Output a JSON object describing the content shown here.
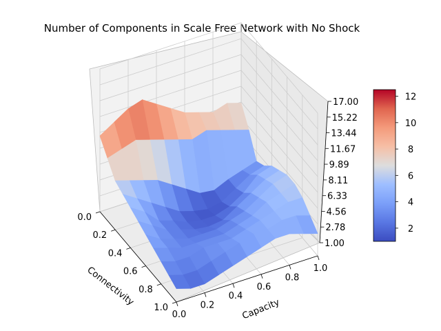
{
  "chart_data": {
    "type": "surface3d",
    "title": "Number of Components in Scale Free Network with No Shock",
    "xlabel": "Connectivity",
    "ylabel": "Capacity",
    "zlabel": "",
    "xlim": [
      0,
      1
    ],
    "ylim": [
      0,
      1
    ],
    "zlim": [
      1,
      17
    ],
    "x_ticks": [
      "0.0",
      "0.2",
      "0.4",
      "0.6",
      "0.8",
      "1.0"
    ],
    "y_ticks": [
      "0.0",
      "0.2",
      "0.4",
      "0.6",
      "0.8",
      "1.0"
    ],
    "z_ticks": [
      "1.00",
      "2.78",
      "4.56",
      "6.33",
      "8.11",
      "9.89",
      "11.67",
      "13.44",
      "15.22",
      "17.00"
    ],
    "grid": true,
    "colormap": "coolwarm",
    "colorbar": {
      "range": [
        1.0,
        12.5
      ],
      "ticks": [
        "2",
        "4",
        "6",
        "8",
        "10",
        "12"
      ]
    },
    "surface": {
      "description_free_values": true,
      "connectivity": [
        0.0,
        0.1,
        0.2,
        0.3,
        0.4,
        0.5,
        0.6,
        0.7,
        0.8,
        0.9,
        1.0
      ],
      "capacity": [
        0.0,
        0.1,
        0.2,
        0.3,
        0.4,
        0.5,
        0.6,
        0.7,
        0.8,
        0.9,
        1.0
      ],
      "z_by_connectivity_row": [
        [
          9.5,
          10.5,
          11.5,
          12.0,
          11.0,
          10.0,
          9.0,
          8.5,
          8.0,
          8.5,
          8.0
        ],
        [
          8.0,
          8.5,
          9.0,
          8.5,
          8.0,
          7.5,
          7.0,
          7.5,
          7.0,
          6.5,
          6.0
        ],
        [
          6.5,
          6.0,
          5.5,
          5.0,
          4.0,
          3.0,
          2.0,
          1.8,
          2.5,
          3.0,
          3.5
        ],
        [
          6.0,
          5.0,
          4.0,
          3.0,
          2.0,
          1.5,
          1.2,
          1.5,
          2.5,
          3.5,
          4.0
        ],
        [
          5.5,
          4.5,
          3.0,
          2.5,
          1.8,
          1.5,
          1.5,
          2.0,
          3.0,
          4.5,
          5.0
        ],
        [
          5.0,
          4.0,
          3.0,
          2.5,
          2.0,
          1.8,
          2.0,
          3.0,
          4.0,
          5.0,
          5.5
        ],
        [
          4.5,
          3.5,
          3.0,
          2.5,
          2.5,
          2.5,
          3.0,
          3.5,
          4.5,
          5.5,
          6.0
        ],
        [
          4.0,
          3.5,
          3.0,
          3.0,
          3.0,
          3.0,
          3.5,
          4.0,
          5.0,
          5.5,
          6.0
        ],
        [
          3.5,
          3.0,
          3.0,
          3.5,
          3.5,
          3.5,
          4.0,
          4.5,
          5.0,
          5.5,
          5.5
        ],
        [
          3.0,
          2.5,
          2.5,
          3.0,
          3.5,
          4.0,
          4.5,
          4.5,
          5.0,
          5.0,
          4.5
        ],
        [
          2.5,
          2.0,
          2.0,
          2.5,
          3.0,
          3.5,
          4.0,
          4.5,
          4.5,
          4.0,
          3.5
        ]
      ]
    }
  }
}
